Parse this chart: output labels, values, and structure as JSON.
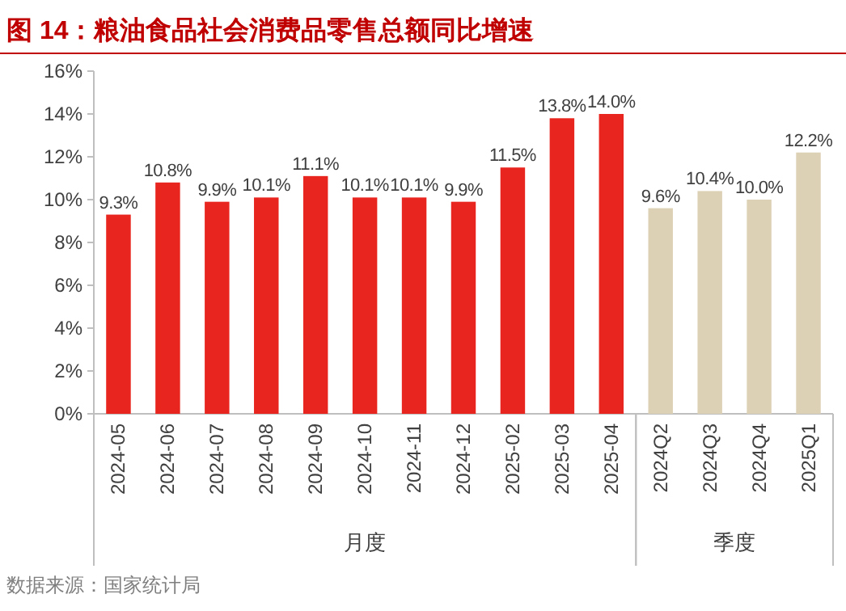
{
  "chart_data": {
    "type": "bar",
    "title": "图 14：粮油食品社会消费品零售总额同比增速",
    "categories": [
      "2024-05",
      "2024-06",
      "2024-07",
      "2024-08",
      "2024-09",
      "2024-10",
      "2024-11",
      "2024-12",
      "2025-02",
      "2025-03",
      "2025-04",
      "2024Q2",
      "2024Q3",
      "2024Q4",
      "2025Q1"
    ],
    "series": [
      {
        "color": "#e8251f",
        "values": [
          9.3,
          10.8,
          9.9,
          10.1,
          11.1,
          10.1,
          10.1,
          9.9,
          11.5,
          13.8,
          14.0,
          null,
          null,
          null,
          null
        ],
        "value_labels": [
          "9.3%",
          "10.8%",
          "9.9%",
          "10.1%",
          "11.1%",
          "10.1%",
          "10.1%",
          "9.9%",
          "11.5%",
          "13.8%",
          "14.0%",
          null,
          null,
          null,
          null
        ]
      },
      {
        "color": "#ddd1b5",
        "values": [
          null,
          null,
          null,
          null,
          null,
          null,
          null,
          null,
          null,
          null,
          null,
          9.6,
          10.4,
          10.0,
          12.2
        ],
        "value_labels": [
          null,
          null,
          null,
          null,
          null,
          null,
          null,
          null,
          null,
          null,
          null,
          "9.6%",
          "10.4%",
          "10.0%",
          "12.2%"
        ]
      }
    ],
    "ylim": [
      0,
      16
    ],
    "yticks": [
      {
        "value": 0,
        "label": "0%"
      },
      {
        "value": 2,
        "label": "2%"
      },
      {
        "value": 4,
        "label": "4%"
      },
      {
        "value": 6,
        "label": "6%"
      },
      {
        "value": 8,
        "label": "8%"
      },
      {
        "value": 10,
        "label": "10%"
      },
      {
        "value": 12,
        "label": "12%"
      },
      {
        "value": 14,
        "label": "14%"
      },
      {
        "value": 16,
        "label": "16%"
      }
    ],
    "annotations": [
      "月度",
      "季度",
      "数据来源：国家统计局"
    ]
  }
}
